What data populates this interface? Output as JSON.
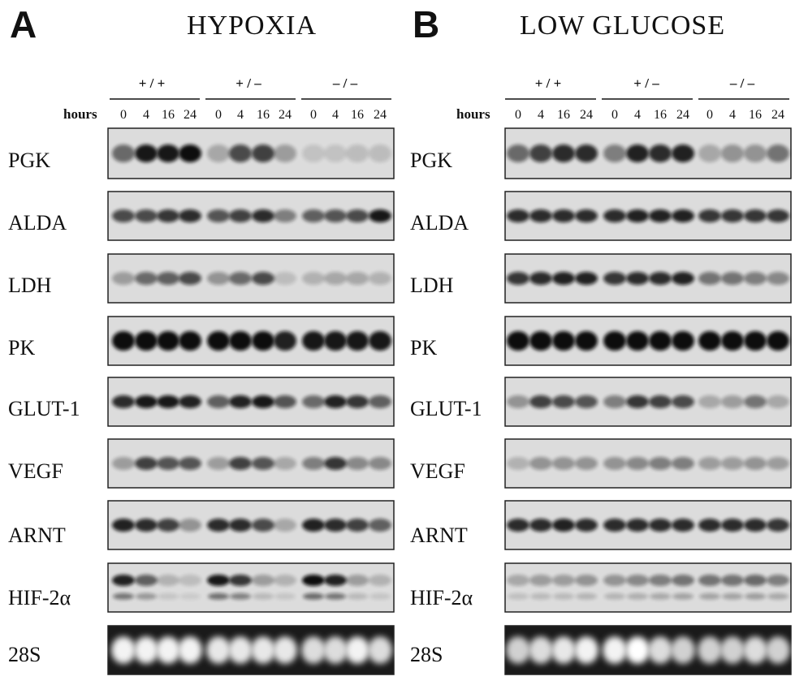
{
  "panels": [
    {
      "letter": "A",
      "title": "HYPOXIA",
      "hours_label": "hours",
      "genotypes": [
        "+ / +",
        "+ / –",
        "– / –"
      ],
      "timepoints": [
        "0",
        "4",
        "16",
        "24"
      ],
      "genes": [
        "PGK",
        "ALDA",
        "LDH",
        "PK",
        "GLUT-1",
        "VEGF",
        "ARNT",
        "HIF-2α",
        "28S"
      ]
    },
    {
      "letter": "B",
      "title": "LOW GLUCOSE",
      "hours_label": "hours",
      "genotypes": [
        "+ / +",
        "+ / –",
        "– / –"
      ],
      "timepoints": [
        "0",
        "4",
        "16",
        "24"
      ],
      "genes": [
        "PGK",
        "ALDA",
        "LDH",
        "PK",
        "GLUT-1",
        "VEGF",
        "ARNT",
        "HIF-2α",
        "28S"
      ]
    }
  ]
}
